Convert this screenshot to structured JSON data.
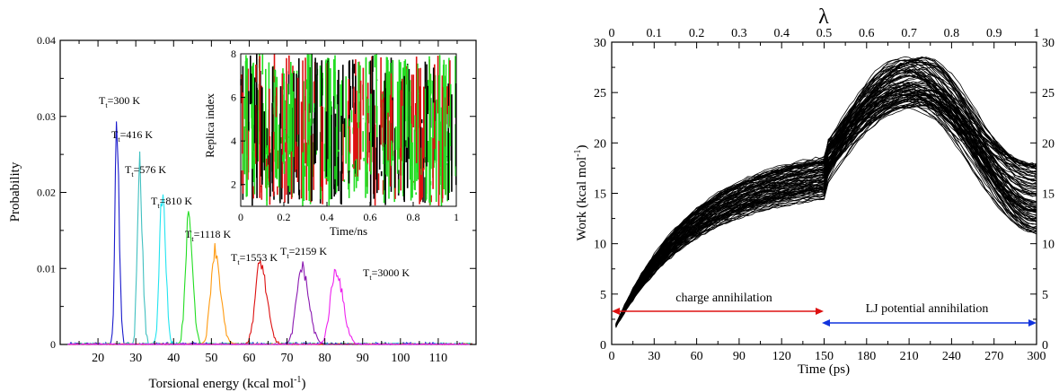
{
  "left_chart": {
    "xlabel": "Torsional energy (kcal  mol",
    "xlabel_sup": "-1",
    "xlabel_end": ")",
    "ylabel": "Probability",
    "xlim": [
      10,
      120
    ],
    "ylim": [
      0,
      0.04
    ],
    "xticks": [
      "20",
      "30",
      "40",
      "50",
      "60",
      "70",
      "80",
      "90",
      "100",
      "110"
    ],
    "yticks": [
      "0",
      "0.01",
      "0.02",
      "0.03",
      "0.04"
    ],
    "temp_labels": [
      "=300 K",
      "=416 K",
      "=576 K",
      "=810 K",
      "=1118 K",
      "=1553 K",
      "=2159 K",
      "=3000 K"
    ],
    "temp_prefix": "T",
    "temp_sub": "t",
    "inset": {
      "xlabel": "Time/ns",
      "ylabel": "Replica index",
      "xticks": [
        "0",
        "0.2",
        "0.4",
        "0.6",
        "0.8",
        "1"
      ],
      "yticks": [
        "2",
        "4",
        "6",
        "8"
      ]
    }
  },
  "right_chart": {
    "xlabel": "Time (ps)",
    "ylabel_main": "Work (kcal mol",
    "ylabel_sup": "-1",
    "ylabel_end": ")",
    "top_label": "λ",
    "xticks": [
      "0",
      "30",
      "60",
      "90",
      "120",
      "150",
      "180",
      "210",
      "240",
      "270",
      "300"
    ],
    "top_ticks": [
      "0",
      "0.1",
      "0.2",
      "0.3",
      "0.4",
      "0.5",
      "0.6",
      "0.7",
      "0.8",
      "0.9",
      "1"
    ],
    "yticks": [
      "0",
      "5",
      "10",
      "15",
      "20",
      "25",
      "30"
    ],
    "xlim": [
      0,
      300
    ],
    "ylim": [
      0,
      30
    ],
    "annotation_charge": "charge annihilation",
    "annotation_lj": "LJ potential annihilation"
  },
  "chart_data": [
    {
      "type": "line",
      "xlabel": "Torsional energy (kcal mol-1)",
      "ylabel": "Probability",
      "xlim": [
        10,
        120
      ],
      "ylim": [
        0,
        0.04
      ],
      "series_note": "probability distributions of torsional energy at 8 replica temperatures",
      "series": [
        {
          "name": "Tt=300 K",
          "color": "#1a1acc",
          "peak_x": 25,
          "peak_y": 0.029
        },
        {
          "name": "Tt=416 K",
          "color": "#40c0c0",
          "peak_x": 31,
          "peak_y": 0.024
        },
        {
          "name": "Tt=576 K",
          "color": "#22e4f0",
          "peak_x": 37,
          "peak_y": 0.02
        },
        {
          "name": "Tt=810 K",
          "color": "#22dd22",
          "peak_x": 44,
          "peak_y": 0.0165
        },
        {
          "name": "Tt=1118 K",
          "color": "#ff9a10",
          "peak_x": 51,
          "peak_y": 0.0125
        },
        {
          "name": "Tt=1553 K",
          "color": "#dd1010",
          "peak_x": 63,
          "peak_y": 0.0108
        },
        {
          "name": "Tt=2159 K",
          "color": "#8a18b0",
          "peak_x": 74,
          "peak_y": 0.0102
        },
        {
          "name": "Tt=3000 K",
          "color": "#ee22ee",
          "peak_x": 83,
          "peak_y": 0.0098
        }
      ]
    },
    {
      "type": "line",
      "xlabel": "Time (ps)",
      "ylabel": "Work (kcal mol-1)",
      "xlim": [
        0,
        300
      ],
      "ylim": [
        0,
        30
      ],
      "top_axis": "λ",
      "series_note": "many work trajectories; mean envelope",
      "x": [
        0,
        30,
        60,
        90,
        120,
        150,
        151,
        180,
        210,
        240,
        270,
        300
      ],
      "series": [
        {
          "name": "",
          "values": [
            1,
            7,
            11,
            14,
            16,
            16.5,
            17.2,
            22,
            25.5,
            22,
            18,
            14
          ]
        }
      ]
    }
  ]
}
